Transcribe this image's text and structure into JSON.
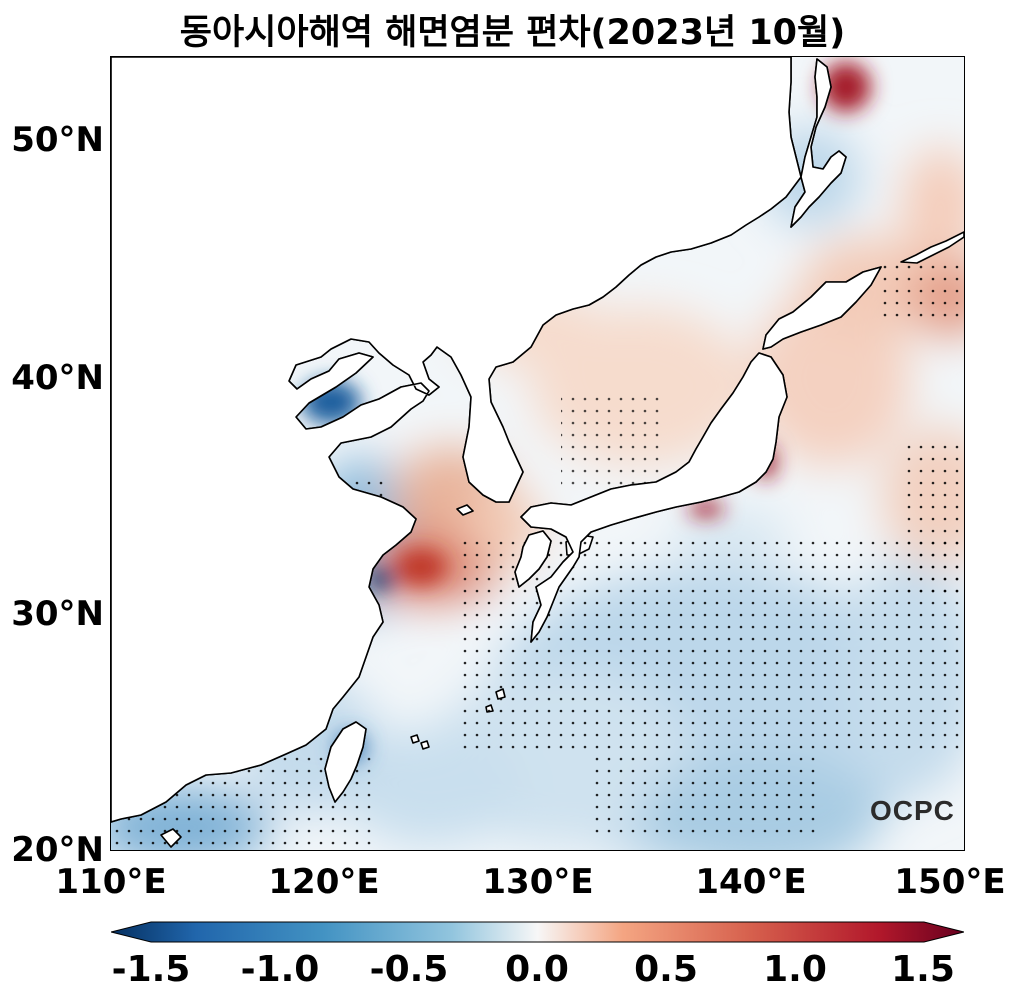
{
  "title": "동아시아해역 해면염분 편차(2023년 10월)",
  "map": {
    "lat_ticks": [
      "50°N",
      "40°N",
      "30°N",
      "20°N"
    ],
    "lon_ticks": [
      "110°E",
      "120°E",
      "130°E",
      "140°E",
      "150°E"
    ],
    "lon_range": [
      110,
      150
    ],
    "lat_range": [
      20,
      53.5
    ]
  },
  "colorbar": {
    "ticks": [
      "-1.5",
      "-1.0",
      "-0.5",
      "0.0",
      "0.5",
      "1.0",
      "1.5"
    ],
    "range": [
      -1.5,
      1.5
    ],
    "colormap": "RdBu_r",
    "negative_color": "#053061",
    "positive_color": "#67001f"
  },
  "logo": "OCPC"
}
